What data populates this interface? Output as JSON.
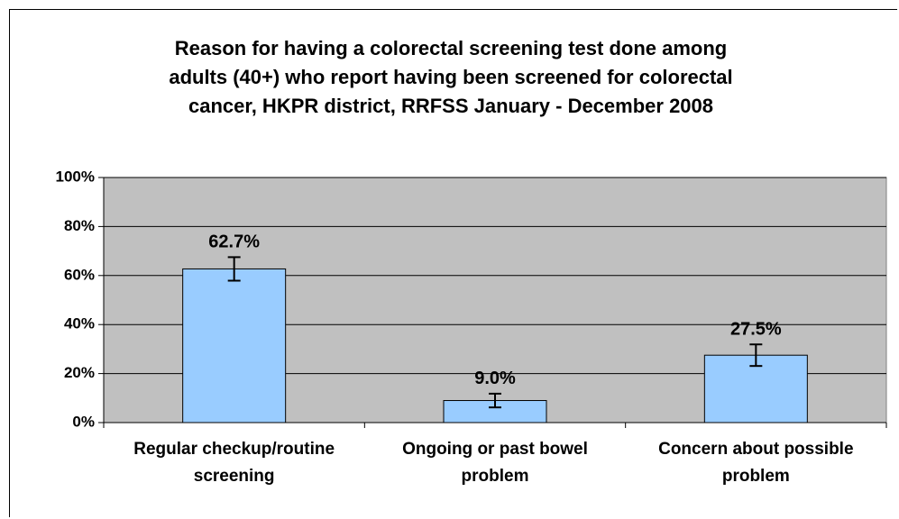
{
  "chart_data": {
    "type": "bar",
    "title": "Reason for having a colorectal screening test done among\nadults (40+) who report having been screened for colorectal\ncancer, HKPR district, RRFSS January - December 2008",
    "categories": [
      "Regular checkup/routine screening",
      "Ongoing or past bowel problem",
      "Concern about possible problem"
    ],
    "values": [
      62.7,
      9.0,
      27.5
    ],
    "value_labels": [
      "62.7%",
      "9.0%",
      "27.5%"
    ],
    "errors": [
      4.8,
      2.8,
      4.4
    ],
    "color": "#99ccff",
    "ylim": [
      0,
      100
    ],
    "yticks": [
      {
        "value": 0,
        "label": "0%"
      },
      {
        "value": 20,
        "label": "20%"
      },
      {
        "value": 40,
        "label": "40%"
      },
      {
        "value": 60,
        "label": "60%"
      },
      {
        "value": 80,
        "label": "80%"
      },
      {
        "value": 100,
        "label": "100%"
      }
    ],
    "grid": true
  }
}
